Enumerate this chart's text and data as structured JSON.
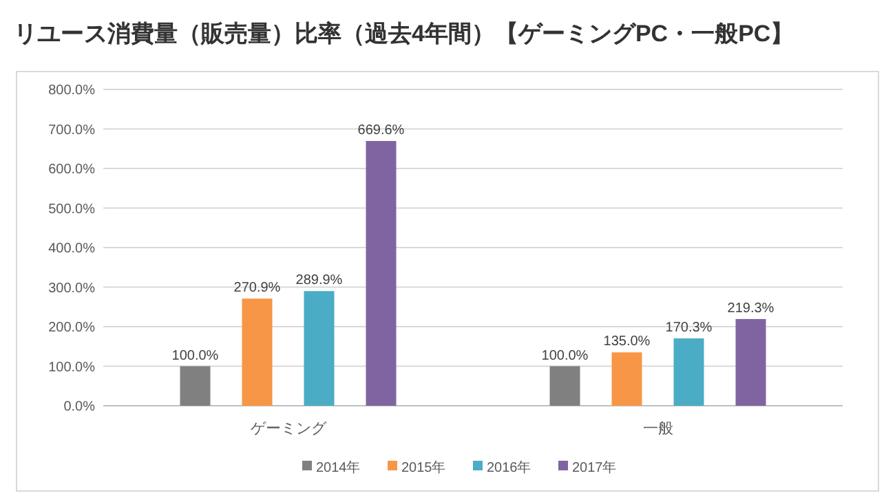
{
  "chart_data": {
    "type": "bar",
    "title": "リユース消費量（販売量）比率（過去4年間）【ゲーミングPC・一般PC】",
    "categories": [
      "ゲーミング",
      "一般"
    ],
    "series": [
      {
        "name": "2014年",
        "color": "#808080",
        "values": [
          100.0,
          100.0
        ],
        "value_labels": [
          "100.0%",
          "100.0%"
        ]
      },
      {
        "name": "2015年",
        "color": "#f79646",
        "values": [
          270.9,
          135.0
        ],
        "value_labels": [
          "270.9%",
          "135.0%"
        ]
      },
      {
        "name": "2016年",
        "color": "#4bacc6",
        "values": [
          289.9,
          170.3
        ],
        "value_labels": [
          "289.9%",
          "170.3%"
        ]
      },
      {
        "name": "2017年",
        "color": "#8064a2",
        "values": [
          669.6,
          219.3
        ],
        "value_labels": [
          "669.6%",
          "219.3%"
        ]
      }
    ],
    "ylim": [
      0,
      800
    ],
    "yticks": [
      {
        "value": 0,
        "label": "0.0%"
      },
      {
        "value": 100,
        "label": "100.0%"
      },
      {
        "value": 200,
        "label": "200.0%"
      },
      {
        "value": 300,
        "label": "300.0%"
      },
      {
        "value": 400,
        "label": "400.0%"
      },
      {
        "value": 500,
        "label": "500.0%"
      },
      {
        "value": 600,
        "label": "600.0%"
      },
      {
        "value": 700,
        "label": "700.0%"
      },
      {
        "value": 800,
        "label": "800.0%"
      }
    ],
    "grid": "y",
    "legend": "bottom"
  }
}
